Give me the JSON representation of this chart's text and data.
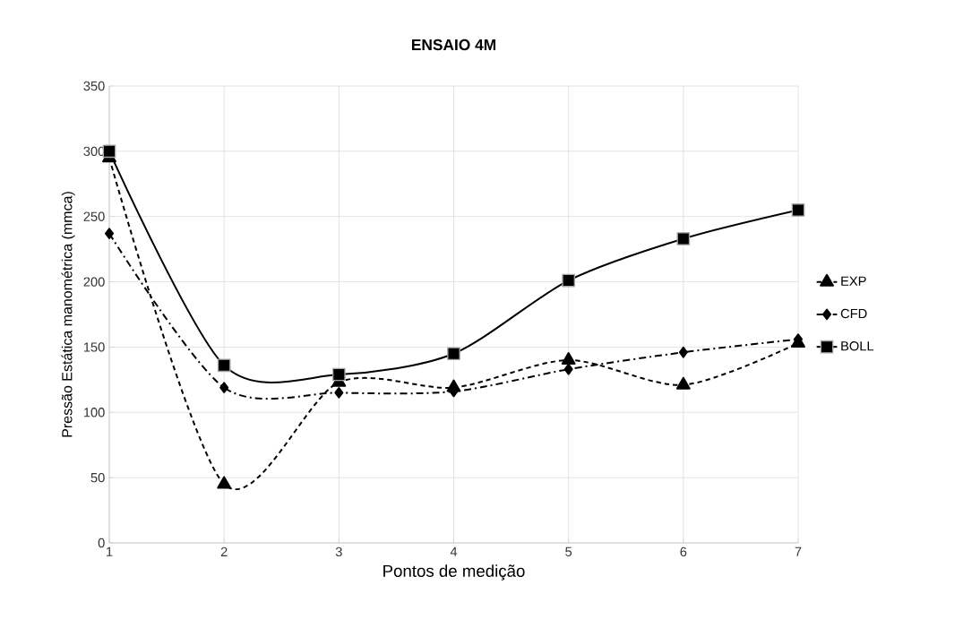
{
  "chart_data": {
    "type": "line",
    "title": "ENSAIO 4M",
    "xlabel": "Pontos de medição",
    "ylabel": "Pressão Estática manométrica (mmca)",
    "x": [
      1,
      2,
      3,
      4,
      5,
      6,
      7
    ],
    "series": [
      {
        "name": "EXP",
        "color": "#000000",
        "marker": "triangle",
        "line_style": "dashed",
        "values": [
          295,
          45,
          123,
          119,
          140,
          121,
          153
        ]
      },
      {
        "name": "CFD",
        "color": "#000000",
        "marker": "diamond",
        "line_style": "dashdot",
        "values": [
          237,
          119,
          115,
          116,
          133,
          146,
          156
        ]
      },
      {
        "name": "BOLL",
        "color": "#000000",
        "marker": "square",
        "line_style": "solid",
        "values": [
          300,
          136,
          129,
          145,
          201,
          233,
          255
        ]
      }
    ],
    "xlim": [
      1,
      7
    ],
    "xticks": [
      1,
      2,
      3,
      4,
      5,
      6,
      7
    ],
    "ylim": [
      0,
      350
    ],
    "yticks": [
      0,
      50,
      100,
      150,
      200,
      250,
      300,
      350
    ],
    "grid": true,
    "legend": "right"
  }
}
